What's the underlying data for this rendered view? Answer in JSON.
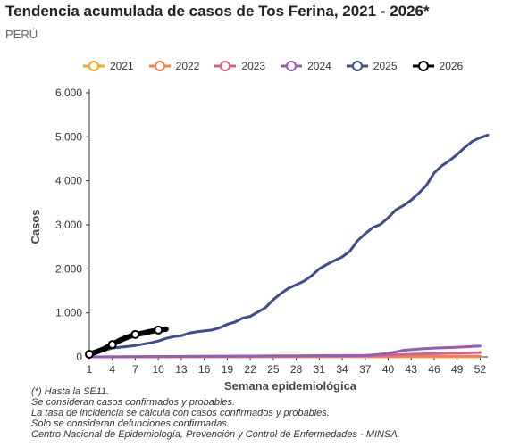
{
  "header": {
    "title": "Tendencia acumulada de casos de Tos Ferina, 2021 - 2026*",
    "subtitle": "PERÚ"
  },
  "notes": [
    "(*) Hasta la SE11.",
    "Se consideran casos confirmados y probables.",
    "La tasa de incidencia se calcula con casos confirmados y probables.",
    "Solo se consideran defunciones confirmadas.",
    "Centro Nacional de Epidemiología, Prevención y Control de Enfermedades - MINSA."
  ],
  "chart_data": {
    "type": "line",
    "title": "Tendencia acumulada de casos de Tos Ferina, 2021 - 2026*",
    "subtitle": "PERÚ",
    "xlabel": "Semana epidemiológica",
    "ylabel": "Casos",
    "xlim": [
      1,
      53
    ],
    "ylim": [
      0,
      6000
    ],
    "x_ticks": [
      1,
      4,
      7,
      10,
      13,
      16,
      19,
      22,
      25,
      28,
      31,
      34,
      37,
      40,
      43,
      46,
      49,
      52
    ],
    "y_ticks": [
      0,
      1000,
      2000,
      3000,
      4000,
      5000,
      6000
    ],
    "y_tick_labels": [
      "0",
      "1,000",
      "2,000",
      "3,000",
      "4,000",
      "5,000",
      "6,000"
    ],
    "legend_position": "top",
    "grid": false,
    "series": [
      {
        "name": "2021",
        "color": "#f5a623",
        "x": [
          1,
          4,
          7,
          10,
          13,
          16,
          19,
          22,
          25,
          28,
          31,
          34,
          37,
          40,
          43,
          46,
          49,
          52
        ],
        "y": [
          0,
          0,
          1,
          1,
          1,
          2,
          2,
          2,
          3,
          3,
          3,
          4,
          4,
          4,
          5,
          5,
          5,
          5
        ]
      },
      {
        "name": "2022",
        "color": "#f08050",
        "x": [
          1,
          4,
          7,
          10,
          13,
          16,
          19,
          22,
          25,
          28,
          31,
          34,
          37,
          40,
          43,
          46,
          49,
          52
        ],
        "y": [
          0,
          1,
          2,
          3,
          4,
          5,
          6,
          7,
          8,
          9,
          10,
          11,
          12,
          13,
          14,
          15,
          16,
          16
        ]
      },
      {
        "name": "2023",
        "color": "#d9608a",
        "x": [
          1,
          4,
          7,
          10,
          13,
          16,
          19,
          22,
          25,
          28,
          31,
          34,
          37,
          40,
          43,
          46,
          49,
          52
        ],
        "y": [
          0,
          3,
          6,
          9,
          12,
          15,
          18,
          21,
          24,
          27,
          30,
          33,
          36,
          45,
          60,
          75,
          90,
          100
        ]
      },
      {
        "name": "2024",
        "color": "#9b59b6",
        "x": [
          1,
          4,
          7,
          10,
          13,
          16,
          19,
          22,
          25,
          28,
          31,
          34,
          37,
          40,
          42,
          44,
          46,
          49,
          51,
          52
        ],
        "y": [
          0,
          3,
          6,
          8,
          10,
          12,
          14,
          16,
          18,
          20,
          22,
          25,
          28,
          80,
          150,
          180,
          200,
          220,
          240,
          250
        ]
      },
      {
        "name": "2025",
        "color": "#3f4d8c",
        "x": [
          1,
          2,
          3,
          4,
          5,
          6,
          7,
          8,
          9,
          10,
          11,
          12,
          13,
          14,
          15,
          16,
          17,
          18,
          19,
          20,
          21,
          22,
          23,
          24,
          25,
          26,
          27,
          28,
          29,
          30,
          31,
          32,
          33,
          34,
          35,
          36,
          37,
          38,
          39,
          40,
          41,
          42,
          43,
          44,
          45,
          46,
          47,
          48,
          49,
          50,
          51,
          52,
          53
        ],
        "y": [
          40,
          100,
          150,
          200,
          220,
          240,
          260,
          290,
          320,
          360,
          420,
          460,
          480,
          540,
          570,
          590,
          610,
          660,
          740,
          790,
          880,
          920,
          1020,
          1120,
          1300,
          1440,
          1560,
          1640,
          1720,
          1840,
          2000,
          2100,
          2190,
          2270,
          2400,
          2640,
          2800,
          2940,
          3010,
          3160,
          3340,
          3440,
          3560,
          3720,
          3900,
          4180,
          4340,
          4460,
          4600,
          4760,
          4900,
          4980,
          5040
        ]
      },
      {
        "name": "2026",
        "color": "#000000",
        "x": [
          1,
          2,
          3,
          4,
          5,
          6,
          7,
          8,
          9,
          10,
          11
        ],
        "y": [
          60,
          120,
          190,
          280,
          380,
          450,
          510,
          540,
          580,
          610,
          630
        ]
      }
    ],
    "marker_points": {
      "2026": [
        1,
        4,
        7,
        10
      ]
    }
  }
}
